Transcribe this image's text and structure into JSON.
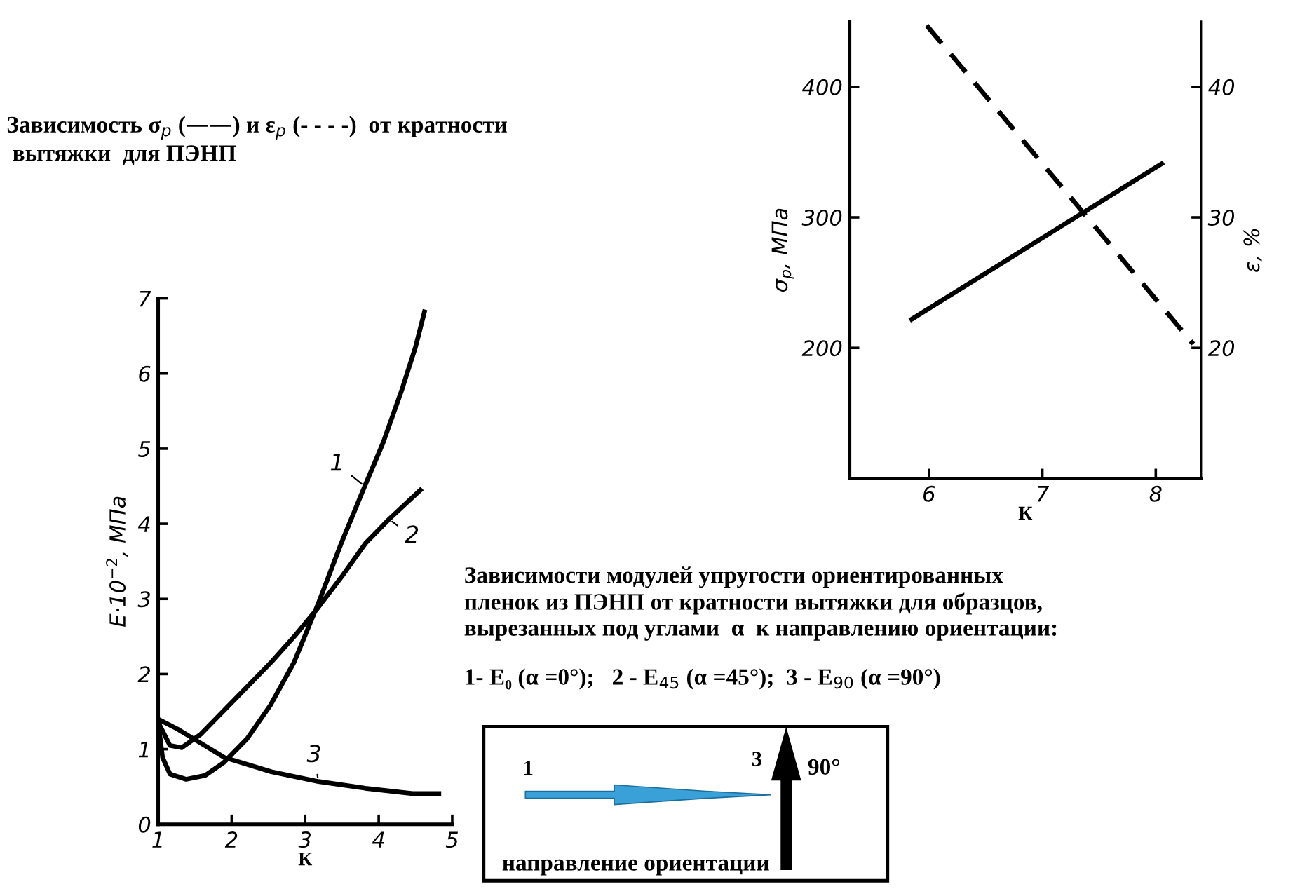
{
  "chart_data": [
    {
      "type": "line",
      "title": "Зависимость σ$_{p}$ (——) и ε$_{p}$ (- - - -)  от кратности\n вытяжки  для ПЭНП",
      "xlabel": "К",
      "ylabel": "σ$_{p}$, МПа",
      "y2label": "ε, %",
      "xlim": [
        5.3,
        8.4
      ],
      "xticks": [
        6,
        7,
        8
      ],
      "ylim": [
        100,
        450
      ],
      "yticks": [
        200,
        300,
        400
      ],
      "y2lim": [
        10,
        45
      ],
      "y2ticks": [
        20,
        30,
        40
      ],
      "grid": false,
      "series": [
        {
          "color": "#000000",
          "line_style": "solid",
          "x": [
            5.83,
            8.07
          ],
          "values": [
            221,
            342
          ]
        },
        {
          "color": "#000000",
          "line_style": "dashed",
          "axis": "y2",
          "x": [
            5.98,
            8.33
          ],
          "values": [
            44.7,
            20.3
          ]
        }
      ]
    },
    {
      "type": "line",
      "xlabel": "К",
      "ylabel": "E·10$^{−2}$, МПа",
      "xlim": [
        1,
        5
      ],
      "xticks": [
        1,
        2,
        3,
        4,
        5
      ],
      "ylim": [
        0,
        7
      ],
      "yticks": [
        0,
        1,
        2,
        3,
        4,
        5,
        6,
        7
      ],
      "grid": false,
      "annotations": [
        "Зависимости модулей упругости ориентированных\nпленок из ПЭНП от кратности вытяжки для образцов,\nвырезанных под углами  α  к направлению ориентации:",
        "1- E₀ (α =0°);   2 - E$_{45}$ (α =45°);  3 - E$_{90}$ (α =90°)",
        "1",
        "3",
        "90°",
        "направление ориентации"
      ],
      "series": [
        {
          "name": "1",
          "color": "#000000",
          "x": [
            1,
            1.06,
            1.16,
            1.38,
            1.64,
            1.89,
            2.21,
            2.53,
            2.85,
            3.17,
            3.49,
            3.81,
            4.06,
            4.31,
            4.5,
            4.63
          ],
          "values": [
            1.36,
            0.89,
            0.67,
            0.6,
            0.65,
            0.82,
            1.14,
            1.59,
            2.16,
            2.92,
            3.74,
            4.5,
            5.08,
            5.77,
            6.35,
            6.85
          ]
        },
        {
          "name": "2",
          "color": "#000000",
          "x": [
            1,
            1.16,
            1.32,
            1.58,
            1.9,
            2.22,
            2.54,
            2.86,
            3.18,
            3.5,
            3.82,
            4.14,
            4.59
          ],
          "values": [
            1.36,
            1.05,
            1.02,
            1.2,
            1.52,
            1.84,
            2.16,
            2.51,
            2.89,
            3.3,
            3.74,
            4.06,
            4.47
          ]
        },
        {
          "name": "3",
          "color": "#000000",
          "x": [
            1,
            1.26,
            1.58,
            1.9,
            2.54,
            3.18,
            3.82,
            4.46,
            4.85
          ],
          "values": [
            1.4,
            1.27,
            1.08,
            0.89,
            0.7,
            0.57,
            0.48,
            0.41,
            0.41
          ]
        }
      ]
    }
  ]
}
